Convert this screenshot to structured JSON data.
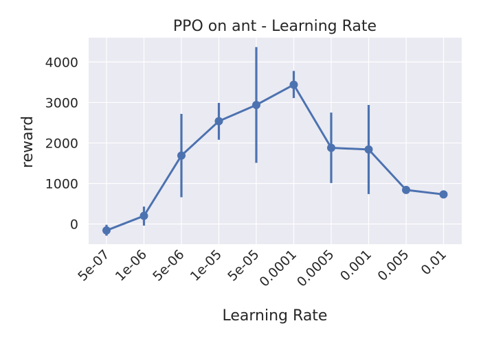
{
  "chart_data": {
    "type": "line",
    "title": "PPO on ant - Learning Rate",
    "xlabel": "Learning Rate",
    "ylabel": "reward",
    "categories": [
      "5e-07",
      "1e-06",
      "5e-06",
      "1e-05",
      "5e-05",
      "0.0001",
      "0.0005",
      "0.001",
      "0.005",
      "0.01"
    ],
    "values": [
      -160,
      200,
      1690,
      2540,
      2940,
      3440,
      1880,
      1840,
      840,
      730
    ],
    "error_low": [
      -290,
      -40,
      660,
      2080,
      1510,
      3110,
      1010,
      740,
      810,
      700
    ],
    "error_high": [
      -20,
      430,
      2720,
      2990,
      4370,
      3780,
      2750,
      2940,
      870,
      760
    ],
    "yticks": [
      0,
      1000,
      2000,
      3000,
      4000
    ],
    "ylim": [
      -500,
      4600
    ],
    "grid": true,
    "colors": {
      "series": "#4c72b0",
      "background": "#eaeaf2",
      "grid": "#ffffff"
    }
  }
}
